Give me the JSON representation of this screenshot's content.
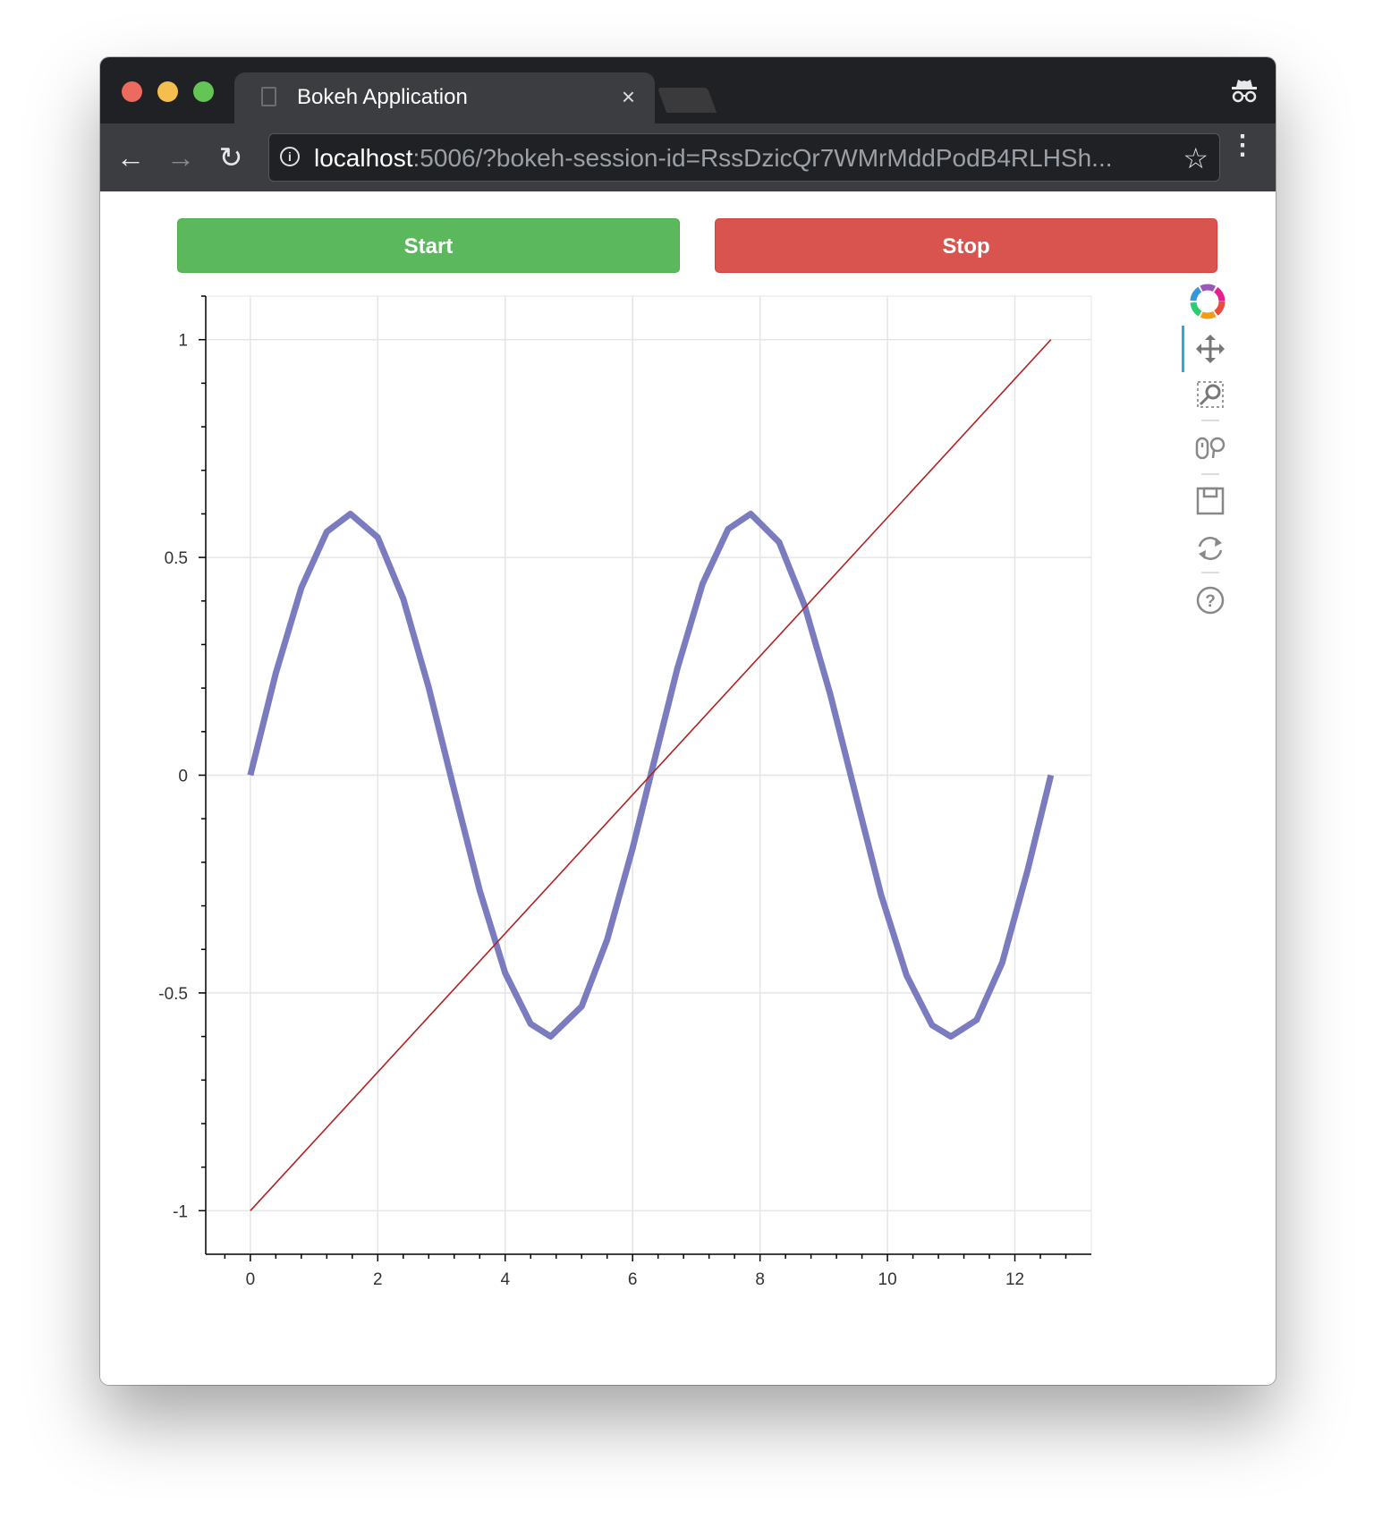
{
  "browser": {
    "tab_title": "Bokeh Application",
    "tab_close": "×",
    "url_host": "localhost",
    "url_rest": ":5006/?bokeh-session-id=RssDzicQr7WMrMddPodB4RLHSh...",
    "icons": [
      "document-icon",
      "incognito-icon",
      "back-arrow-icon",
      "forward-arrow-icon",
      "reload-icon",
      "info-icon",
      "star-icon",
      "menu-icon"
    ]
  },
  "buttons": {
    "start_label": "Start",
    "stop_label": "Stop"
  },
  "toolbar": {
    "tools": [
      "bokeh-logo-icon",
      "pan-tool-icon",
      "box-zoom-tool-icon",
      "wheel-zoom-tool-icon",
      "save-tool-icon",
      "reset-tool-icon",
      "help-tool-icon"
    ],
    "active_tool": "pan-tool-icon",
    "active_color": "#26aae1"
  },
  "chart_data": {
    "type": "line",
    "xlim": [
      -0.7,
      13.2
    ],
    "ylim": [
      -1.1,
      1.1
    ],
    "x_ticks": [
      0,
      2,
      4,
      6,
      8,
      10,
      12
    ],
    "x_tick_labels": [
      "0",
      "2",
      "4",
      "6",
      "8",
      "10",
      "12"
    ],
    "y_ticks": [
      -1,
      -0.5,
      0,
      0.5,
      1
    ],
    "y_tick_labels": [
      "-1",
      "-0.5",
      "0",
      "0.5",
      "1"
    ],
    "grid": true,
    "series": [
      {
        "color": "#7b7bc0",
        "width": "thick",
        "x": [
          0,
          0.4,
          0.8,
          1.2,
          1.571,
          2.0,
          2.4,
          2.8,
          3.2,
          3.6,
          4.0,
          4.4,
          4.712,
          5.2,
          5.6,
          6.0,
          6.283,
          6.7,
          7.1,
          7.5,
          7.854,
          8.3,
          8.7,
          9.1,
          9.5,
          9.9,
          10.3,
          10.7,
          10.996,
          11.4,
          11.8,
          12.2,
          12.566
        ],
        "y": [
          0.0,
          0.234,
          0.43,
          0.559,
          0.6,
          0.546,
          0.405,
          0.201,
          -0.035,
          -0.265,
          -0.454,
          -0.571,
          -0.6,
          -0.531,
          -0.378,
          -0.168,
          0.0,
          0.244,
          0.44,
          0.565,
          0.6,
          0.535,
          0.389,
          0.187,
          -0.045,
          -0.275,
          -0.46,
          -0.574,
          -0.6,
          -0.562,
          -0.431,
          -0.218,
          0.0
        ]
      },
      {
        "color": "#b22222",
        "width": "thin",
        "x": [
          0,
          12.566
        ],
        "y": [
          -1,
          1
        ]
      }
    ]
  }
}
